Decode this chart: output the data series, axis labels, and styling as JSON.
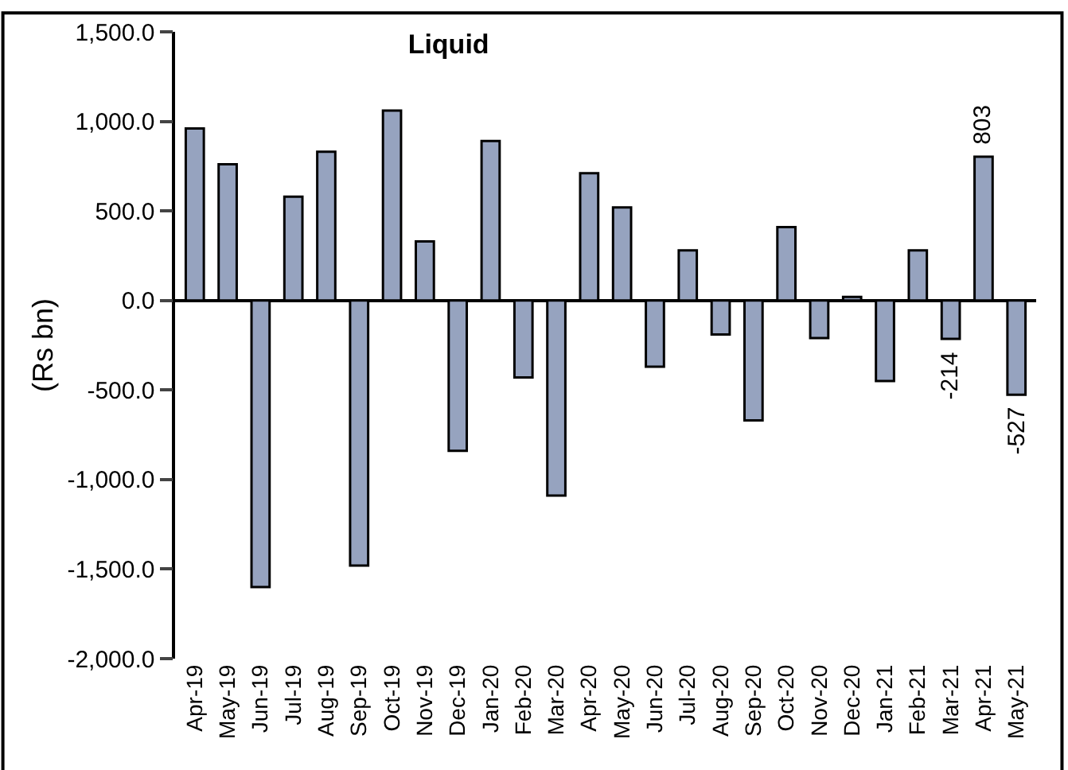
{
  "chart_data": {
    "type": "bar",
    "title": "Liquid",
    "ylabel": "(Rs bn)",
    "categories": [
      "Apr-19",
      "May-19",
      "Jun-19",
      "Jul-19",
      "Aug-19",
      "Sep-19",
      "Oct-19",
      "Nov-19",
      "Dec-19",
      "Jan-20",
      "Feb-20",
      "Mar-20",
      "Apr-20",
      "May-20",
      "Jun-20",
      "Jul-20",
      "Aug-20",
      "Sep-20",
      "Oct-20",
      "Nov-20",
      "Dec-20",
      "Jan-21",
      "Feb-21",
      "Mar-21",
      "Apr-21",
      "May-21"
    ],
    "values": [
      960,
      760,
      -1600,
      580,
      830,
      -1480,
      1060,
      330,
      -840,
      890,
      -430,
      -1090,
      710,
      520,
      -370,
      280,
      -190,
      -670,
      410,
      -210,
      20,
      -450,
      280,
      -214,
      803,
      -527
    ],
    "value_labels": [
      null,
      null,
      null,
      null,
      null,
      null,
      null,
      null,
      null,
      null,
      null,
      null,
      null,
      null,
      null,
      null,
      null,
      null,
      null,
      null,
      null,
      null,
      null,
      "-214",
      "803",
      "-527"
    ],
    "color": "#96a3bf",
    "ylim": [
      -2000,
      1500
    ],
    "yticks": [
      {
        "value": -2000,
        "label": "-2,000.0"
      },
      {
        "value": -1500,
        "label": "-1,500.0"
      },
      {
        "value": -1000,
        "label": "-1,000.0"
      },
      {
        "value": -500,
        "label": "-500.0"
      },
      {
        "value": 0,
        "label": "0.0"
      },
      {
        "value": 500,
        "label": "500.0"
      },
      {
        "value": 1000,
        "label": "1,000.0"
      },
      {
        "value": 1500,
        "label": "1,500.0"
      }
    ]
  }
}
